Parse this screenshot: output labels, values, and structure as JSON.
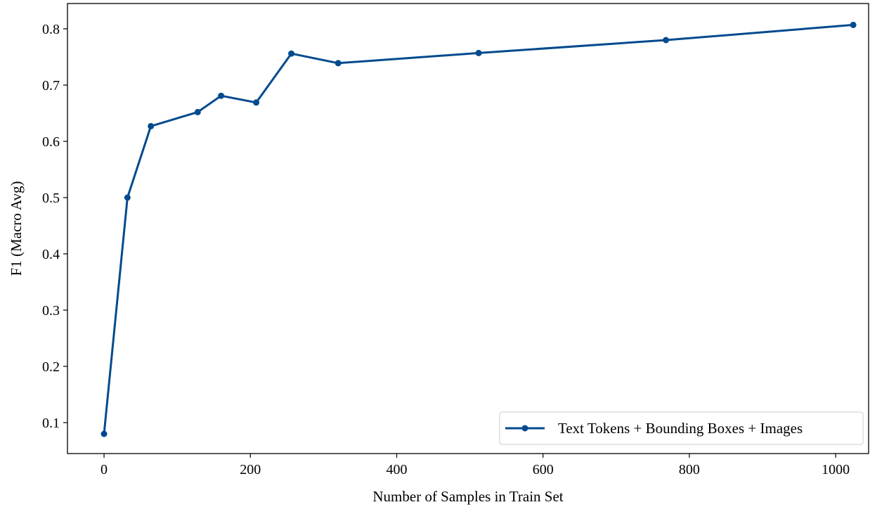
{
  "chart_data": {
    "type": "line",
    "xlabel": "Number of Samples in Train Set",
    "ylabel": "F1 (Macro Avg)",
    "xlim": [
      -50,
      1045
    ],
    "ylim": [
      0.045,
      0.845
    ],
    "x_ticks": [
      0,
      200,
      400,
      600,
      800,
      1000
    ],
    "x_tick_labels": [
      "0",
      "200",
      "400",
      "600",
      "800",
      "1000"
    ],
    "y_ticks": [
      0.1,
      0.2,
      0.3,
      0.4,
      0.5,
      0.6,
      0.7,
      0.8
    ],
    "y_tick_labels": [
      "0.1",
      "0.2",
      "0.3",
      "0.4",
      "0.5",
      "0.6",
      "0.7",
      "0.8"
    ],
    "grid": false,
    "legend_position": "bottom-right",
    "series": [
      {
        "name": "Text Tokens + Bounding Boxes + Images",
        "color": "#024A8E",
        "marker": "circle",
        "x": [
          0,
          32,
          64,
          128,
          160,
          208,
          256,
          320,
          512,
          768,
          1024
        ],
        "y": [
          0.08,
          0.5,
          0.627,
          0.652,
          0.681,
          0.669,
          0.756,
          0.739,
          0.757,
          0.78,
          0.807
        ]
      }
    ]
  }
}
